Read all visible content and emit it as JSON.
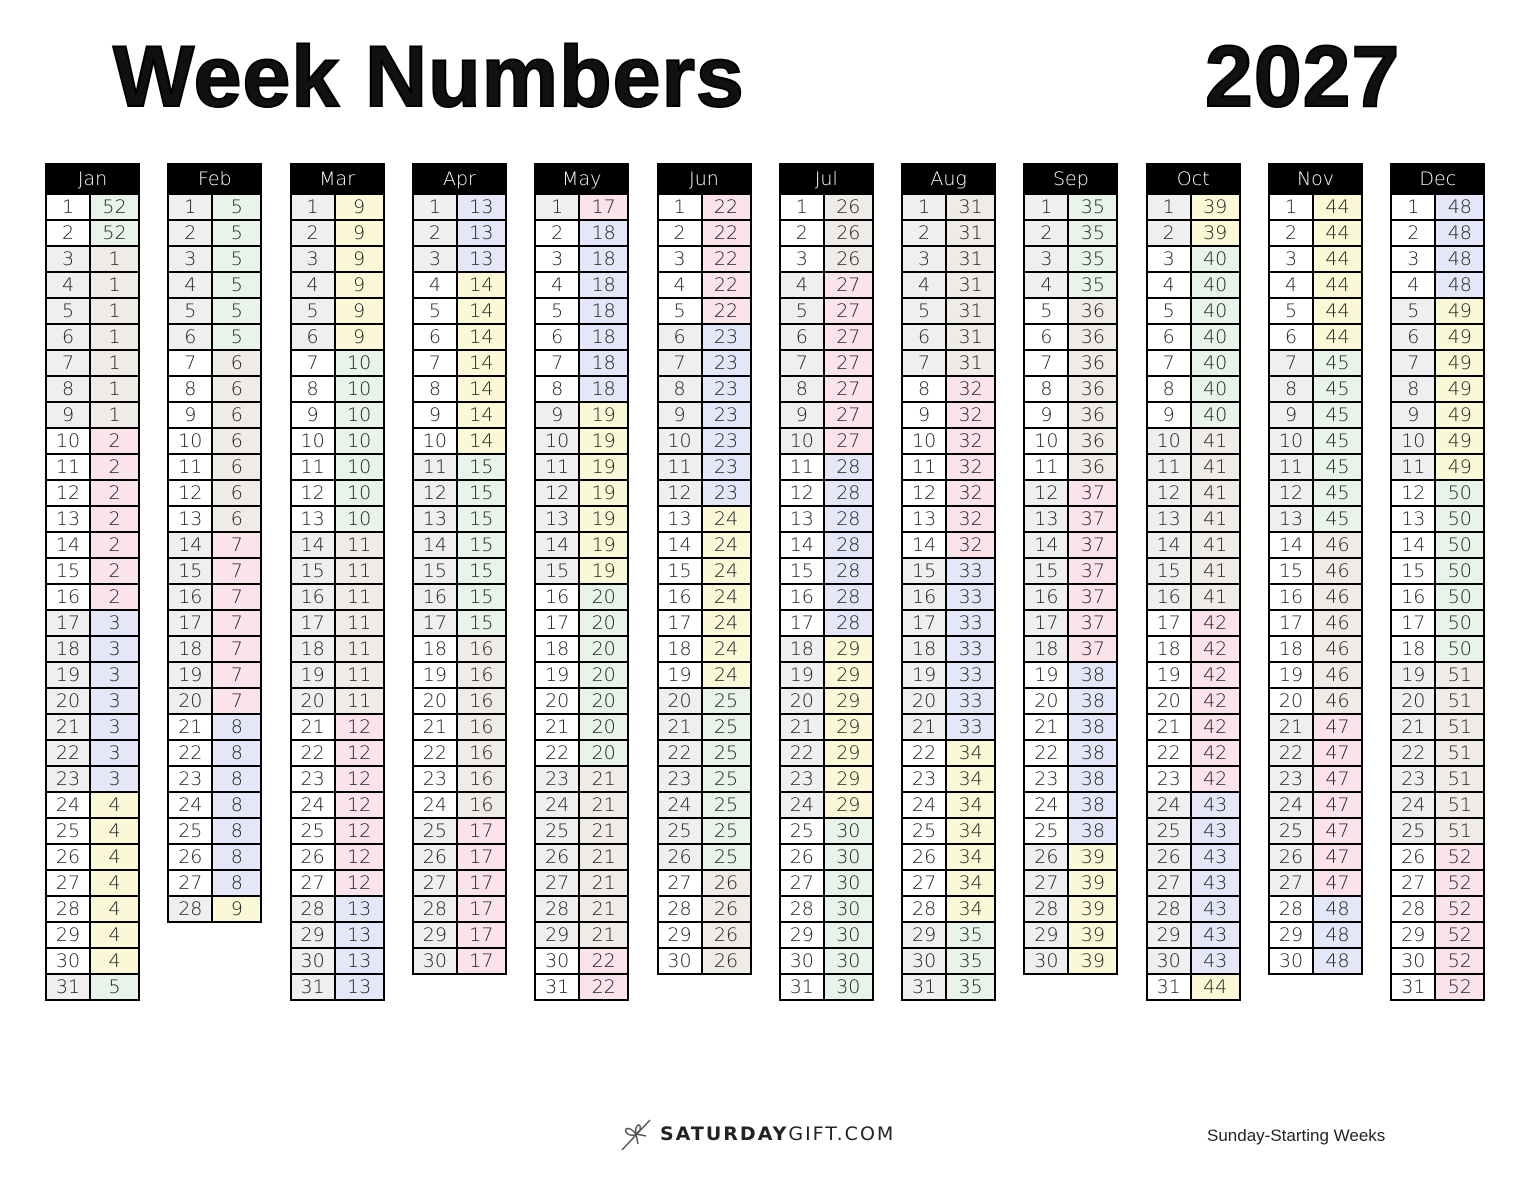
{
  "title": "Week Numbers",
  "year": "2027",
  "footer": {
    "brand_bold": "SATURDAY",
    "brand_light": "GIFT.COM",
    "note": "Sunday-Starting Weeks"
  },
  "colors": {
    "week_cycle": [
      "#e8f4e9",
      "#efece7",
      "#fbe3ea",
      "#e5e7f8",
      "#fbf8d8"
    ],
    "day_alt": "#efefef",
    "header_bg": "#000000"
  },
  "months": [
    {
      "name": "Jan",
      "weeks": [
        52,
        52,
        1,
        1,
        1,
        1,
        1,
        1,
        1,
        2,
        2,
        2,
        2,
        2,
        2,
        2,
        3,
        3,
        3,
        3,
        3,
        3,
        3,
        4,
        4,
        4,
        4,
        4,
        4,
        4,
        5
      ]
    },
    {
      "name": "Feb",
      "weeks": [
        5,
        5,
        5,
        5,
        5,
        5,
        6,
        6,
        6,
        6,
        6,
        6,
        6,
        7,
        7,
        7,
        7,
        7,
        7,
        7,
        8,
        8,
        8,
        8,
        8,
        8,
        8,
        9
      ]
    },
    {
      "name": "Mar",
      "weeks": [
        9,
        9,
        9,
        9,
        9,
        9,
        10,
        10,
        10,
        10,
        10,
        10,
        10,
        11,
        11,
        11,
        11,
        11,
        11,
        11,
        12,
        12,
        12,
        12,
        12,
        12,
        12,
        13,
        13,
        13,
        13
      ]
    },
    {
      "name": "Apr",
      "weeks": [
        13,
        13,
        13,
        14,
        14,
        14,
        14,
        14,
        14,
        14,
        15,
        15,
        15,
        15,
        15,
        15,
        15,
        16,
        16,
        16,
        16,
        16,
        16,
        16,
        17,
        17,
        17,
        17,
        17,
        17
      ]
    },
    {
      "name": "May",
      "weeks": [
        17,
        18,
        18,
        18,
        18,
        18,
        18,
        18,
        19,
        19,
        19,
        19,
        19,
        19,
        19,
        20,
        20,
        20,
        20,
        20,
        20,
        20,
        21,
        21,
        21,
        21,
        21,
        21,
        21,
        22,
        22
      ]
    },
    {
      "name": "Jun",
      "weeks": [
        22,
        22,
        22,
        22,
        22,
        23,
        23,
        23,
        23,
        23,
        23,
        23,
        24,
        24,
        24,
        24,
        24,
        24,
        24,
        25,
        25,
        25,
        25,
        25,
        25,
        25,
        26,
        26,
        26,
        26
      ]
    },
    {
      "name": "Jul",
      "weeks": [
        26,
        26,
        26,
        27,
        27,
        27,
        27,
        27,
        27,
        27,
        28,
        28,
        28,
        28,
        28,
        28,
        28,
        29,
        29,
        29,
        29,
        29,
        29,
        29,
        30,
        30,
        30,
        30,
        30,
        30,
        30
      ]
    },
    {
      "name": "Aug",
      "weeks": [
        31,
        31,
        31,
        31,
        31,
        31,
        31,
        32,
        32,
        32,
        32,
        32,
        32,
        32,
        33,
        33,
        33,
        33,
        33,
        33,
        33,
        34,
        34,
        34,
        34,
        34,
        34,
        34,
        35,
        35,
        35
      ]
    },
    {
      "name": "Sep",
      "weeks": [
        35,
        35,
        35,
        35,
        36,
        36,
        36,
        36,
        36,
        36,
        36,
        37,
        37,
        37,
        37,
        37,
        37,
        37,
        38,
        38,
        38,
        38,
        38,
        38,
        38,
        39,
        39,
        39,
        39,
        39
      ]
    },
    {
      "name": "Oct",
      "weeks": [
        39,
        39,
        40,
        40,
        40,
        40,
        40,
        40,
        40,
        41,
        41,
        41,
        41,
        41,
        41,
        41,
        42,
        42,
        42,
        42,
        42,
        42,
        42,
        43,
        43,
        43,
        43,
        43,
        43,
        43,
        44
      ]
    },
    {
      "name": "Nov",
      "weeks": [
        44,
        44,
        44,
        44,
        44,
        44,
        45,
        45,
        45,
        45,
        45,
        45,
        45,
        46,
        46,
        46,
        46,
        46,
        46,
        46,
        47,
        47,
        47,
        47,
        47,
        47,
        47,
        48,
        48,
        48
      ]
    },
    {
      "name": "Dec",
      "weeks": [
        48,
        48,
        48,
        48,
        49,
        49,
        49,
        49,
        49,
        49,
        49,
        50,
        50,
        50,
        50,
        50,
        50,
        50,
        51,
        51,
        51,
        51,
        51,
        51,
        51,
        52,
        52,
        52,
        52,
        52,
        52
      ]
    }
  ]
}
